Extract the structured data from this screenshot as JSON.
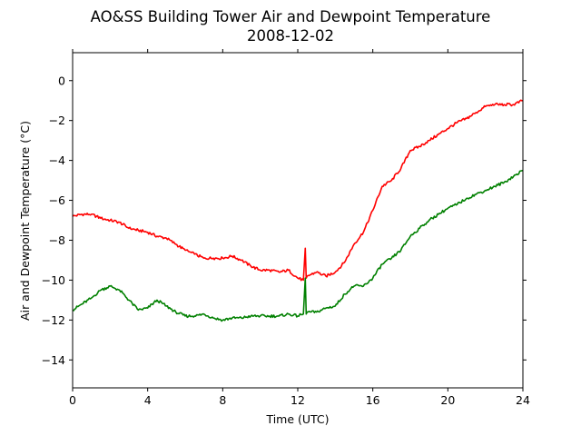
{
  "chart_data": {
    "type": "line",
    "title": "AO&SS Building Tower Air and Dewpoint Temperature",
    "subtitle": "2008-12-02",
    "xlabel": "Time (UTC)",
    "ylabel": "Air and Dewpoint Temperature (°C)",
    "xlim": [
      0,
      24
    ],
    "ylim": [
      -15.4,
      1.4
    ],
    "x_ticks": [
      0,
      4,
      8,
      12,
      16,
      20,
      24
    ],
    "y_ticks": [
      0,
      -2,
      -4,
      -6,
      -8,
      -10,
      -12,
      -14
    ],
    "x_tick_labels": [
      "0",
      "4",
      "8",
      "12",
      "16",
      "20",
      "24"
    ],
    "y_tick_labels": [
      "0",
      "−2",
      "−4",
      "−6",
      "−8",
      "−10",
      "−12",
      "−14"
    ],
    "grid": false,
    "legend": "none",
    "series": [
      {
        "color": "#ff0000",
        "x": [
          0,
          0.5,
          1,
          1.5,
          2,
          2.5,
          3,
          3.5,
          4,
          4.5,
          5,
          5.5,
          6,
          6.5,
          7,
          7.5,
          8,
          8.5,
          9,
          9.5,
          10,
          10.5,
          11,
          11.5,
          12,
          12.3,
          12.4,
          12.45,
          12.5,
          13,
          13.5,
          14,
          14.5,
          15,
          15.5,
          16,
          16.5,
          17,
          17.5,
          18,
          18.5,
          19,
          19.5,
          20,
          20.5,
          21,
          21.5,
          22,
          22.5,
          23,
          23.5,
          24
        ],
        "y": [
          -6.8,
          -6.7,
          -6.7,
          -6.9,
          -7.0,
          -7.1,
          -7.4,
          -7.5,
          -7.6,
          -7.8,
          -7.9,
          -8.2,
          -8.5,
          -8.7,
          -8.9,
          -8.9,
          -8.9,
          -8.8,
          -9.0,
          -9.3,
          -9.5,
          -9.5,
          -9.6,
          -9.5,
          -9.9,
          -10.0,
          -8.4,
          -9.9,
          -9.8,
          -9.6,
          -9.8,
          -9.6,
          -9.1,
          -8.2,
          -7.6,
          -6.5,
          -5.3,
          -5.0,
          -4.4,
          -3.5,
          -3.3,
          -3.0,
          -2.7,
          -2.4,
          -2.1,
          -1.9,
          -1.6,
          -1.3,
          -1.2,
          -1.2,
          -1.2,
          -1.0
        ]
      },
      {
        "color": "#008000",
        "x": [
          0,
          0.5,
          1,
          1.5,
          2,
          2.5,
          3,
          3.5,
          4,
          4.5,
          5,
          5.5,
          6,
          6.5,
          7,
          7.5,
          8,
          8.5,
          9,
          9.5,
          10,
          10.5,
          11,
          11.5,
          12,
          12.3,
          12.4,
          12.45,
          12.5,
          13,
          13.5,
          14,
          14.5,
          15,
          15.5,
          16,
          16.5,
          17,
          17.5,
          18,
          18.5,
          19,
          19.5,
          20,
          20.5,
          21,
          21.5,
          22,
          22.5,
          23,
          23.5,
          24
        ],
        "y": [
          -11.5,
          -11.2,
          -10.9,
          -10.5,
          -10.3,
          -10.5,
          -11.0,
          -11.5,
          -11.4,
          -11.0,
          -11.3,
          -11.6,
          -11.8,
          -11.8,
          -11.7,
          -11.9,
          -12.0,
          -11.9,
          -11.9,
          -11.8,
          -11.8,
          -11.8,
          -11.8,
          -11.7,
          -11.8,
          -11.7,
          -9.9,
          -11.7,
          -11.6,
          -11.6,
          -11.4,
          -11.3,
          -10.7,
          -10.3,
          -10.3,
          -9.9,
          -9.2,
          -8.9,
          -8.5,
          -7.8,
          -7.4,
          -7.0,
          -6.7,
          -6.4,
          -6.2,
          -5.9,
          -5.7,
          -5.5,
          -5.3,
          -5.1,
          -4.8,
          -4.5
        ]
      }
    ]
  }
}
